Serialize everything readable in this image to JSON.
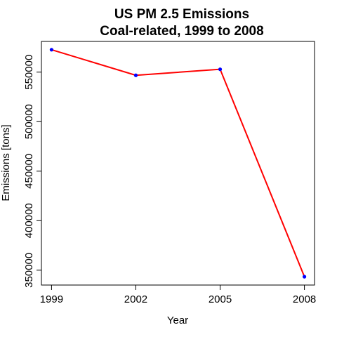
{
  "chart_data": {
    "type": "line",
    "title": "US PM 2.5 Emissions",
    "subtitle": "Coal-related,  1999 to 2008",
    "xlabel": "Year",
    "ylabel": "Emissions [tons]",
    "x": [
      1999,
      2002,
      2005,
      2008
    ],
    "series": [
      {
        "values": [
          572626,
          546789,
          552881,
          343432
        ]
      }
    ],
    "x_ticks": [
      "1999",
      "2002",
      "2005",
      "2008"
    ],
    "y_ticks": [
      "350000",
      "400000",
      "450000",
      "500000",
      "550000"
    ],
    "xlim": [
      1998.64,
      2008.36
    ],
    "ylim": [
      335000,
      581000
    ],
    "grid": false,
    "line_color": "#ff0000",
    "point_color": "#0000ff"
  }
}
